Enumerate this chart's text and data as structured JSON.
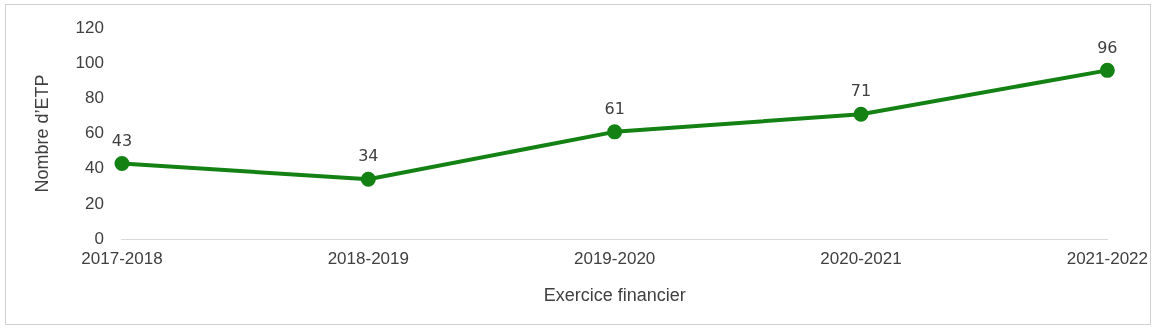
{
  "chart_data": {
    "type": "line",
    "xlabel": "Exercice financier",
    "ylabel": "Nombre d’ETP",
    "categories": [
      "2017-2018",
      "2018-2019",
      "2019-2020",
      "2020-2021",
      "2021-2022"
    ],
    "series": [
      {
        "color": "#138113",
        "values": [
          43,
          34,
          61,
          71,
          96
        ]
      }
    ],
    "ylim": [
      0,
      120
    ],
    "yticks": [
      0,
      20,
      40,
      60,
      80,
      100,
      120
    ],
    "grid": false,
    "legend": false,
    "marker": "circle",
    "line_style": "solid",
    "data_labels": true
  }
}
